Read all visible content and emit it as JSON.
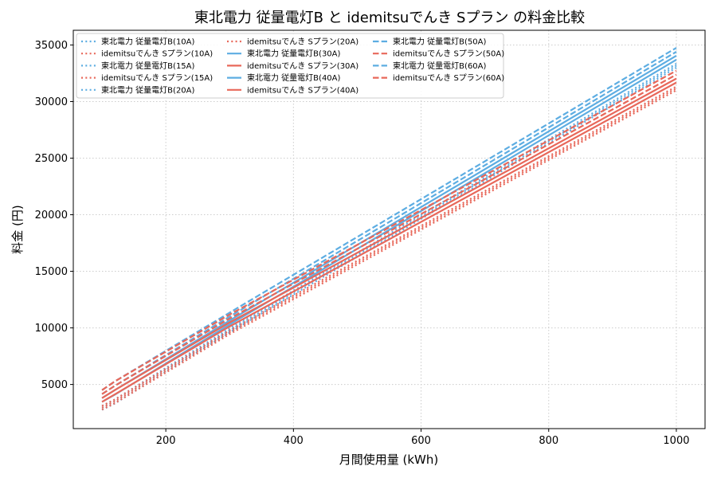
{
  "chart_data": {
    "type": "line",
    "title": "東北電力 従量電灯B と idemitsuでんき Sプラン の料金比較",
    "xlabel": "月間使用量 (kWh)",
    "ylabel": "料金 (円)",
    "xlim": [
      55,
      1045
    ],
    "ylim": [
      1100,
      36300
    ],
    "xticks": [
      200,
      400,
      600,
      800,
      1000
    ],
    "yticks": [
      5000,
      10000,
      15000,
      20000,
      25000,
      30000,
      35000
    ],
    "grid": true,
    "legend_position": "upper-left",
    "legend_columns": 3,
    "colors": {
      "tohoku": "#5DADE2",
      "idemitsu": "#E8685A"
    },
    "x": [
      100,
      120,
      300,
      1000
    ],
    "series": [
      {
        "name": "東北電力 従量電灯B(10A)",
        "color": "#5DADE2",
        "style": "dotted",
        "values": [
          2760,
          3320,
          9600,
          33000
        ]
      },
      {
        "name": "idemitsuでんき Sプラン(10A)",
        "color": "#E8685A",
        "style": "dotted",
        "values": [
          2780,
          3340,
          9450,
          31000
        ]
      },
      {
        "name": "東北電力 従量電灯B(15A)",
        "color": "#5DADE2",
        "style": "dotted",
        "values": [
          2940,
          3500,
          9780,
          33180
        ]
      },
      {
        "name": "idemitsuでんき Sプラン(15A)",
        "color": "#E8685A",
        "style": "dotted",
        "values": [
          2950,
          3510,
          9620,
          31170
        ]
      },
      {
        "name": "東北電力 従量電灯B(20A)",
        "color": "#5DADE2",
        "style": "dotted",
        "values": [
          3110,
          3670,
          9950,
          33350
        ]
      },
      {
        "name": "idemitsuでんき Sプラン(20A)",
        "color": "#E8685A",
        "style": "dotted",
        "values": [
          3110,
          3670,
          9780,
          31330
        ]
      },
      {
        "name": "東北電力 従量電灯B(30A)",
        "color": "#5DADE2",
        "style": "solid",
        "values": [
          3460,
          4100,
          10300,
          33700
        ]
      },
      {
        "name": "idemitsuでんき Sプラン(30A)",
        "color": "#E8685A",
        "style": "solid",
        "values": [
          3460,
          4120,
          10130,
          31680
        ]
      },
      {
        "name": "東北電力 従量電灯B(40A)",
        "color": "#5DADE2",
        "style": "solid",
        "values": [
          3800,
          4500,
          10650,
          34050
        ]
      },
      {
        "name": "idemitsuでんき Sプラン(40A)",
        "color": "#E8685A",
        "style": "solid",
        "values": [
          3800,
          4500,
          10480,
          32030
        ]
      },
      {
        "name": "東北電力 従量電灯B(50A)",
        "color": "#5DADE2",
        "style": "dashed",
        "values": [
          4150,
          4880,
          11000,
          34400
        ]
      },
      {
        "name": "idemitsuでんき Sプラン(50A)",
        "color": "#E8685A",
        "style": "dashed",
        "values": [
          4150,
          4880,
          10830,
          32380
        ]
      },
      {
        "name": "東北電力 従量電灯B(60A)",
        "color": "#5DADE2",
        "style": "dashed",
        "values": [
          4500,
          5270,
          11350,
          34750
        ]
      },
      {
        "name": "idemitsuでんき Sプラン(60A)",
        "color": "#E8685A",
        "style": "dashed",
        "values": [
          4500,
          5270,
          11180,
          32730
        ]
      }
    ]
  }
}
